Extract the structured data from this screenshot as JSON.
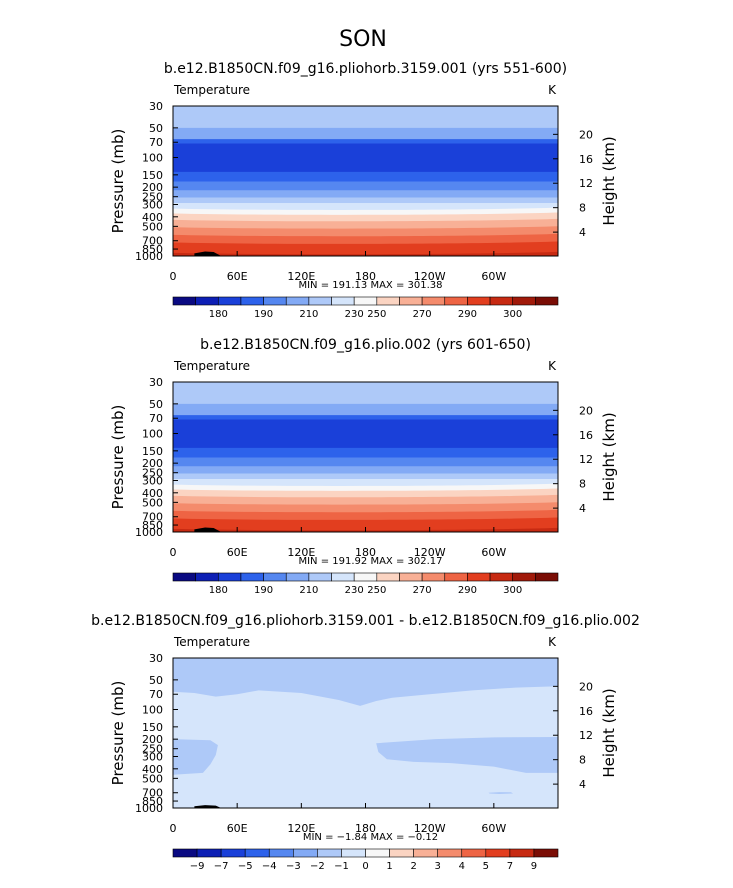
{
  "figure": {
    "season": "SON"
  },
  "chart_data": [
    {
      "type": "heatmap",
      "title": "b.e12.B1850CN.f09_g16.pliohorb.3159.001 (yrs 551-600)",
      "variable": "Temperature",
      "units": "K",
      "ylabel": "Pressure  (mb)",
      "ylabel_right": "Height  (km)",
      "x_ticks": [
        "0",
        "60E",
        "120E",
        "180",
        "120W",
        "60W"
      ],
      "x_tick_values": [
        0,
        60,
        120,
        180,
        240,
        300
      ],
      "xlim": [
        0,
        360
      ],
      "y_ticks": [
        "30",
        "50",
        "70",
        "100",
        "150",
        "200",
        "250",
        "300",
        "400",
        "500",
        "700",
        "850",
        "1000"
      ],
      "y_tick_values": [
        30,
        50,
        70,
        100,
        150,
        200,
        250,
        300,
        400,
        500,
        700,
        850,
        1000
      ],
      "ylim": [
        30,
        1000
      ],
      "y_right_ticks": [
        "20",
        "16",
        "12",
        "8",
        "4"
      ],
      "y_right_tick_values": [
        20,
        16,
        12,
        8,
        4
      ],
      "stats": "MIN =  191.13   MAX =  301.38",
      "colorbar_labels": [
        "180",
        "190",
        "210",
        "230",
        "250",
        "270",
        "290",
        "300"
      ],
      "colorbar_colors": [
        "#0a0a82",
        "#0d1fb5",
        "#1a40d9",
        "#2d62eb",
        "#5587f0",
        "#83aaf5",
        "#aec9f8",
        "#d5e5fb",
        "#f7f7f7",
        "#fbd4c2",
        "#f8b096",
        "#f48b6c",
        "#ee6444",
        "#e23e1f",
        "#c72a12",
        "#a11a0a",
        "#7a0d05"
      ],
      "bands": [
        {
          "p": 30,
          "color": "#aec9f8"
        },
        {
          "p": 50,
          "color": "#83aaf5"
        },
        {
          "p": 65,
          "color": "#2d62eb"
        },
        {
          "p": 72,
          "color": "#1a40d9"
        },
        {
          "p": 140,
          "color": "#2d62eb"
        },
        {
          "p": 175,
          "color": "#5587f0"
        },
        {
          "p": 215,
          "color": "#83aaf5"
        },
        {
          "p": 255,
          "color": "#aec9f8"
        },
        {
          "p": 290,
          "color": "#d5e5fb"
        },
        {
          "p": 330,
          "color": "#f7f7f7"
        },
        {
          "p": 370,
          "color": "#fbd4c2"
        },
        {
          "p": 430,
          "color": "#f8b096"
        },
        {
          "p": 510,
          "color": "#f48b6c"
        },
        {
          "p": 610,
          "color": "#ee6444"
        },
        {
          "p": 730,
          "color": "#e23e1f"
        },
        {
          "p": 930,
          "color": "#c72a12"
        }
      ],
      "terrain": [
        [
          20,
          940
        ],
        [
          30,
          900
        ],
        [
          38,
          910
        ],
        [
          45,
          1000
        ]
      ]
    },
    {
      "type": "heatmap",
      "title": "b.e12.B1850CN.f09_g16.plio.002 (yrs 601-650)",
      "variable": "Temperature",
      "units": "K",
      "ylabel": "Pressure  (mb)",
      "ylabel_right": "Height  (km)",
      "x_ticks": [
        "0",
        "60E",
        "120E",
        "180",
        "120W",
        "60W"
      ],
      "x_tick_values": [
        0,
        60,
        120,
        180,
        240,
        300
      ],
      "xlim": [
        0,
        360
      ],
      "y_ticks": [
        "30",
        "50",
        "70",
        "100",
        "150",
        "200",
        "250",
        "300",
        "400",
        "500",
        "700",
        "850",
        "1000"
      ],
      "y_tick_values": [
        30,
        50,
        70,
        100,
        150,
        200,
        250,
        300,
        400,
        500,
        700,
        850,
        1000
      ],
      "ylim": [
        30,
        1000
      ],
      "y_right_ticks": [
        "20",
        "16",
        "12",
        "8",
        "4"
      ],
      "y_right_tick_values": [
        20,
        16,
        12,
        8,
        4
      ],
      "stats": "MIN =  191.92   MAX =  302.17",
      "colorbar_labels": [
        "180",
        "190",
        "210",
        "230",
        "250",
        "270",
        "290",
        "300"
      ],
      "colorbar_colors": [
        "#0a0a82",
        "#0d1fb5",
        "#1a40d9",
        "#2d62eb",
        "#5587f0",
        "#83aaf5",
        "#aec9f8",
        "#d5e5fb",
        "#f7f7f7",
        "#fbd4c2",
        "#f8b096",
        "#f48b6c",
        "#ee6444",
        "#e23e1f",
        "#c72a12",
        "#a11a0a",
        "#7a0d05"
      ],
      "bands": [
        {
          "p": 30,
          "color": "#aec9f8"
        },
        {
          "p": 50,
          "color": "#83aaf5"
        },
        {
          "p": 65,
          "color": "#2d62eb"
        },
        {
          "p": 72,
          "color": "#1a40d9"
        },
        {
          "p": 140,
          "color": "#2d62eb"
        },
        {
          "p": 175,
          "color": "#5587f0"
        },
        {
          "p": 215,
          "color": "#83aaf5"
        },
        {
          "p": 255,
          "color": "#aec9f8"
        },
        {
          "p": 290,
          "color": "#d5e5fb"
        },
        {
          "p": 330,
          "color": "#f7f7f7"
        },
        {
          "p": 370,
          "color": "#fbd4c2"
        },
        {
          "p": 430,
          "color": "#f8b096"
        },
        {
          "p": 510,
          "color": "#f48b6c"
        },
        {
          "p": 610,
          "color": "#ee6444"
        },
        {
          "p": 730,
          "color": "#e23e1f"
        },
        {
          "p": 930,
          "color": "#c72a12"
        }
      ],
      "terrain": [
        [
          20,
          940
        ],
        [
          30,
          900
        ],
        [
          38,
          910
        ],
        [
          45,
          1000
        ]
      ]
    },
    {
      "type": "heatmap",
      "title": "b.e12.B1850CN.f09_g16.pliohorb.3159.001 - b.e12.B1850CN.f09_g16.plio.002",
      "variable": "Temperature",
      "units": "K",
      "ylabel": "Pressure  (mb)",
      "ylabel_right": "Height  (km)",
      "x_ticks": [
        "0",
        "60E",
        "120E",
        "180",
        "120W",
        "60W"
      ],
      "x_tick_values": [
        0,
        60,
        120,
        180,
        240,
        300
      ],
      "xlim": [
        0,
        360
      ],
      "y_ticks": [
        "30",
        "50",
        "70",
        "100",
        "150",
        "200",
        "250",
        "300",
        "400",
        "500",
        "700",
        "850",
        "1000"
      ],
      "y_tick_values": [
        30,
        50,
        70,
        100,
        150,
        200,
        250,
        300,
        400,
        500,
        700,
        850,
        1000
      ],
      "ylim": [
        30,
        1000
      ],
      "y_right_ticks": [
        "20",
        "16",
        "12",
        "8",
        "4"
      ],
      "y_right_tick_values": [
        20,
        16,
        12,
        8,
        4
      ],
      "stats": "MIN =  −1.84   MAX =  −0.12",
      "colorbar_labels": [
        "−9",
        "−7",
        "−5",
        "−4",
        "−3",
        "−2",
        "−1",
        "0",
        "1",
        "2",
        "3",
        "4",
        "5",
        "7",
        "9"
      ],
      "colorbar_colors": [
        "#0a0a82",
        "#0d1fb5",
        "#1a40d9",
        "#2d62eb",
        "#5587f0",
        "#83aaf5",
        "#aec9f8",
        "#d5e5fb",
        "#f7f7f7",
        "#fbd4c2",
        "#f8b096",
        "#f48b6c",
        "#ee6444",
        "#e23e1f",
        "#c72a12",
        "#7a0d05"
      ],
      "background": "#d5e5fb",
      "regions": [
        {
          "color": "#aec9f8",
          "points": [
            [
              0,
              30
            ],
            [
              360,
              30
            ],
            [
              360,
              58
            ],
            [
              320,
              60
            ],
            [
              280,
              64
            ],
            [
              240,
              70
            ],
            [
              205,
              76
            ],
            [
              190,
              82
            ],
            [
              175,
              92
            ],
            [
              155,
              80
            ],
            [
              120,
              68
            ],
            [
              80,
              64
            ],
            [
              60,
              70
            ],
            [
              40,
              74
            ],
            [
              20,
              68
            ],
            [
              0,
              66
            ]
          ]
        },
        {
          "color": "#aec9f8",
          "points": [
            [
              0,
              200
            ],
            [
              35,
              205
            ],
            [
              42,
              230
            ],
            [
              40,
              290
            ],
            [
              35,
              360
            ],
            [
              28,
              440
            ],
            [
              0,
              460
            ]
          ]
        },
        {
          "color": "#aec9f8",
          "points": [
            [
              190,
              220
            ],
            [
              245,
              200
            ],
            [
              300,
              192
            ],
            [
              360,
              190
            ],
            [
              360,
              440
            ],
            [
              330,
              440
            ],
            [
              300,
              380
            ],
            [
              260,
              350
            ],
            [
              225,
              340
            ],
            [
              200,
              320
            ],
            [
              192,
              270
            ]
          ]
        },
        {
          "color": "#aec9f8",
          "points": [
            [
              295,
              700
            ],
            [
              305,
              690
            ],
            [
              316,
              692
            ],
            [
              318,
              712
            ],
            [
              305,
              720
            ],
            [
              296,
              712
            ]
          ]
        }
      ],
      "terrain": [
        [
          20,
          960
        ],
        [
          30,
          935
        ],
        [
          40,
          945
        ],
        [
          45,
          1000
        ]
      ]
    }
  ]
}
